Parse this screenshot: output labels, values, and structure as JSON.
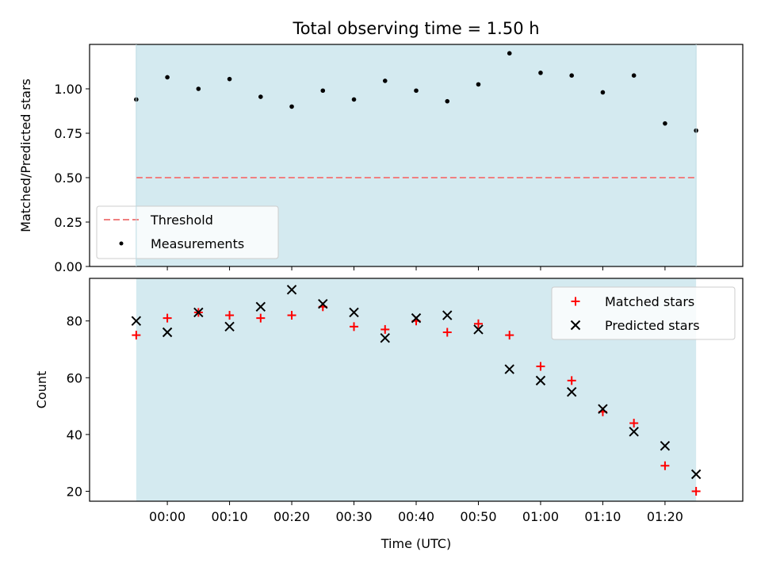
{
  "title": "Total observing time = 1.50 h",
  "colors": {
    "background_band": "#d4eaf0",
    "threshold": "#f08080",
    "measurement": "#000000",
    "matched": "#ff0000",
    "predicted": "#000000"
  },
  "chart_data": [
    {
      "type": "scatter",
      "panel": "top",
      "ylabel": "Matched/Predicted stars",
      "xlabel": "",
      "ylim": [
        0.0,
        1.25
      ],
      "yticks": [
        "0.00",
        "0.25",
        "0.50",
        "0.75",
        "1.00"
      ],
      "x": [
        "23:55",
        "00:00",
        "00:05",
        "00:10",
        "00:15",
        "00:20",
        "00:25",
        "00:30",
        "00:35",
        "00:40",
        "00:45",
        "00:50",
        "00:55",
        "01:00",
        "01:05",
        "01:10",
        "01:15",
        "01:20",
        "01:25"
      ],
      "series": [
        {
          "name": "Threshold",
          "style": "dashed-line",
          "values": [
            0.5,
            0.5
          ]
        },
        {
          "name": "Measurements",
          "style": "dot",
          "values": [
            0.94,
            1.065,
            1.0,
            1.055,
            0.955,
            0.9,
            0.99,
            0.94,
            1.045,
            0.99,
            0.93,
            1.025,
            1.2,
            1.09,
            1.075,
            0.98,
            1.075,
            0.805,
            0.765
          ]
        }
      ],
      "legend": "lower-left",
      "legend_entries": [
        "Threshold",
        "Measurements"
      ],
      "grid": false
    },
    {
      "type": "scatter",
      "panel": "bottom",
      "ylabel": "Count",
      "xlabel": "Time (UTC)",
      "ylim": [
        16.5,
        95
      ],
      "yticks": [
        "20",
        "40",
        "60",
        "80"
      ],
      "xticks": [
        "00:00",
        "00:10",
        "00:20",
        "00:30",
        "00:40",
        "00:50",
        "01:00",
        "01:10",
        "01:20"
      ],
      "x": [
        "23:55",
        "00:00",
        "00:05",
        "00:10",
        "00:15",
        "00:20",
        "00:25",
        "00:30",
        "00:35",
        "00:40",
        "00:45",
        "00:50",
        "00:55",
        "01:00",
        "01:05",
        "01:10",
        "01:15",
        "01:20",
        "01:25"
      ],
      "series": [
        {
          "name": "Matched stars",
          "marker": "plus",
          "values": [
            75,
            81,
            83,
            82,
            81,
            82,
            85,
            78,
            77,
            80,
            76,
            79,
            75,
            64,
            59,
            48,
            44,
            29,
            20
          ]
        },
        {
          "name": "Predicted stars",
          "marker": "x",
          "values": [
            80,
            76,
            83,
            78,
            85,
            91,
            86,
            83,
            74,
            81,
            82,
            77,
            63,
            59,
            55,
            49,
            41,
            36,
            26
          ]
        }
      ],
      "legend": "upper-right",
      "legend_entries": [
        "Matched stars",
        "Predicted stars"
      ],
      "grid": false
    }
  ]
}
